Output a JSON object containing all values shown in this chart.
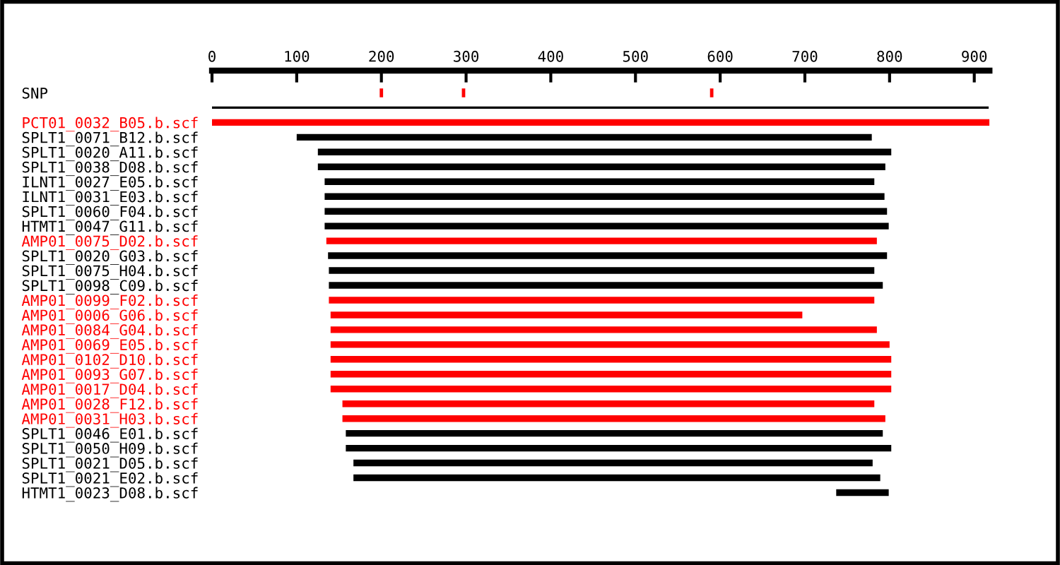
{
  "chart_data": {
    "type": "bar",
    "orientation": "horizontal",
    "categories": [
      "SNP",
      null,
      "PCT01_0032_B05.b.scf",
      "SPLT1_0071_B12.b.scf",
      "SPLT1_0020_A11.b.scf",
      "SPLT1_0038_D08.b.scf",
      "ILNT1_0027_E05.b.scf",
      "ILNT1_0031_E03.b.scf",
      "SPLT1_0060_F04.b.scf",
      "HTMT1_0047_G11.b.scf",
      "AMP01_0075_D02.b.scf",
      "SPLT1_0020_G03.b.scf",
      "SPLT1_0075_H04.b.scf",
      "SPLT1_0098_C09.b.scf",
      "AMP01_0099_F02.b.scf",
      "AMP01_0006_G06.b.scf",
      "AMP01_0084_G04.b.scf",
      "AMP01_0069_E05.b.scf",
      "AMP01_0102_D10.b.scf",
      "AMP01_0093_G07.b.scf",
      "AMP01_0017_D04.b.scf",
      "AMP01_0028_F12.b.scf",
      "AMP01_0031_H03.b.scf",
      "SPLT1_0046_E01.b.scf",
      "SPLT1_0050_H09.b.scf",
      "SPLT1_0021_D05.b.scf",
      "SPLT1_0021_E02.b.scf",
      "HTMT1_0023_D08.b.scf"
    ],
    "series": [
      {
        "base": [
          null,
          0,
          0,
          100,
          125,
          125,
          133,
          133,
          133,
          133,
          135,
          137,
          138,
          138,
          138,
          140,
          140,
          140,
          140,
          140,
          140,
          154,
          154,
          158,
          158,
          167,
          167,
          737
        ],
        "values": [
          null,
          917,
          918,
          679,
          677,
          670,
          649,
          661,
          664,
          666,
          650,
          660,
          644,
          654,
          644,
          557,
          645,
          660,
          662,
          662,
          662,
          628,
          641,
          634,
          644,
          613,
          622,
          62
        ],
        "colors": [
          "#000000",
          "#000000",
          "#ff0000",
          "#000000",
          "#000000",
          "#000000",
          "#000000",
          "#000000",
          "#000000",
          "#000000",
          "#ff0000",
          "#000000",
          "#000000",
          "#000000",
          "#ff0000",
          "#ff0000",
          "#ff0000",
          "#ff0000",
          "#ff0000",
          "#ff0000",
          "#ff0000",
          "#ff0000",
          "#ff0000",
          "#000000",
          "#000000",
          "#000000",
          "#000000",
          "#000000"
        ]
      },
      {
        "base": [
          198,
          null,
          null,
          null,
          null,
          null,
          null,
          null,
          null,
          null,
          null,
          null,
          null,
          null,
          null,
          null,
          null,
          null,
          null,
          null,
          null,
          null,
          null,
          null,
          null,
          null,
          null,
          null
        ],
        "values": [
          4,
          null,
          null,
          null,
          null,
          null,
          null,
          null,
          null,
          null,
          null,
          null,
          null,
          null,
          null,
          null,
          null,
          null,
          null,
          null,
          null,
          null,
          null,
          null,
          null,
          null,
          null,
          null
        ],
        "color": "#ff0000"
      },
      {
        "base": [
          295,
          null,
          null,
          null,
          null,
          null,
          null,
          null,
          null,
          null,
          null,
          null,
          null,
          null,
          null,
          null,
          null,
          null,
          null,
          null,
          null,
          null,
          null,
          null,
          null,
          null,
          null,
          null
        ],
        "values": [
          4,
          null,
          null,
          null,
          null,
          null,
          null,
          null,
          null,
          null,
          null,
          null,
          null,
          null,
          null,
          null,
          null,
          null,
          null,
          null,
          null,
          null,
          null,
          null,
          null,
          null,
          null,
          null
        ],
        "color": "#ff0000"
      },
      {
        "base": [
          588,
          null,
          null,
          null,
          null,
          null,
          null,
          null,
          null,
          null,
          null,
          null,
          null,
          null,
          null,
          null,
          null,
          null,
          null,
          null,
          null,
          null,
          null,
          null,
          null,
          null,
          null,
          null
        ],
        "values": [
          4,
          null,
          null,
          null,
          null,
          null,
          null,
          null,
          null,
          null,
          null,
          null,
          null,
          null,
          null,
          null,
          null,
          null,
          null,
          null,
          null,
          null,
          null,
          null,
          null,
          null,
          null,
          null
        ],
        "color": "#ff0000"
      }
    ],
    "xlim": [
      0,
      918
    ],
    "xticks": [
      0,
      100,
      200,
      300,
      400,
      500,
      600,
      700,
      800,
      900
    ],
    "grid": false,
    "legend": false
  }
}
